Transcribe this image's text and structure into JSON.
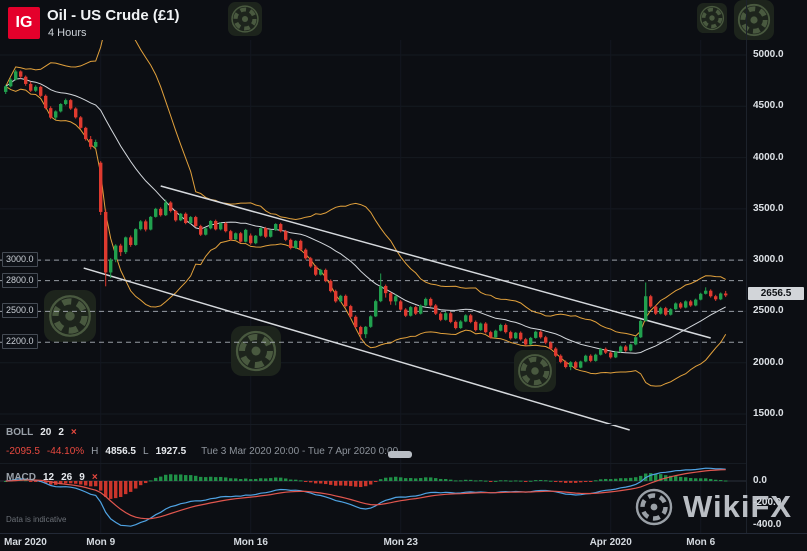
{
  "header": {
    "logo": "IG",
    "title": "Oil - US Crude (£1)",
    "timeframe": "4 Hours"
  },
  "watermark": {
    "brand": "WikiFX"
  },
  "price_axis": {
    "ticks": [
      "5000.0",
      "4500.0",
      "4000.0",
      "3500.0",
      "3000.0",
      "2500.0",
      "2000.0",
      "1500.0"
    ],
    "current_price": "2656.5"
  },
  "levels": [
    "3000.0",
    "2800.0",
    "2500.0",
    "2200.0"
  ],
  "time_axis": [
    "Mar 2020",
    "Mon 9",
    "Mon 16",
    "Mon 23",
    "Apr 2020",
    "Mon 6"
  ],
  "indicators": {
    "boll": {
      "name": "BOLL",
      "params": [
        "20",
        "2"
      ],
      "close_label": "×",
      "stats": {
        "change": "-2095.5",
        "change_pct": "-44.10%",
        "high_label": "H",
        "high": "4856.5",
        "low_label": "L",
        "low": "1927.5",
        "range": "Tue 3 Mar 2020 20:00 - Tue 7 Apr 2020 0:00"
      }
    },
    "macd": {
      "name": "MACD",
      "params": [
        "12",
        "26",
        "9"
      ],
      "close_label": "×",
      "axis_ticks": [
        "0.0",
        "-200.0",
        "-400.0"
      ]
    }
  },
  "footer": {
    "note": "Data is indicative"
  },
  "chart_data": {
    "type": "candlestick",
    "title": "Oil - US Crude (£1)",
    "interval": "4 Hours",
    "visible_range": "Tue 3 Mar 2020 20:00 - Tue 7 Apr 2020 0:00",
    "period_high": 4856.5,
    "period_low": 1927.5,
    "change": -2095.5,
    "change_pct": -44.1,
    "last": 2656.5,
    "y_axis": {
      "min": 1500,
      "max": 5000,
      "step": 500
    },
    "macd_axis": {
      "min": -400,
      "max": 0,
      "step": 200
    },
    "levels": [
      3000,
      2800,
      2500,
      2200
    ],
    "indicators": {
      "bollinger": {
        "period": 20,
        "stddev": 2
      },
      "macd": {
        "fast": 12,
        "slow": 26,
        "signal": 9
      }
    },
    "overlays": {
      "trendlines": [
        {
          "i1": 31,
          "p1": 3723,
          "i2": 141,
          "p2": 2241
        },
        {
          "i1": 15.6,
          "p1": 2923,
          "i2": 124.8,
          "p2": 1344
        }
      ]
    },
    "candles": [
      [
        4640,
        4710,
        4620,
        4695
      ],
      [
        4695,
        4775,
        4685,
        4760
      ],
      [
        4760,
        4856.5,
        4750,
        4840
      ],
      [
        4840,
        4850,
        4770,
        4788
      ],
      [
        4788,
        4800,
        4700,
        4718
      ],
      [
        4718,
        4740,
        4640,
        4652
      ],
      [
        4652,
        4705,
        4640,
        4690
      ],
      [
        4690,
        4700,
        4590,
        4602
      ],
      [
        4602,
        4615,
        4470,
        4482
      ],
      [
        4482,
        4500,
        4375,
        4390
      ],
      [
        4390,
        4460,
        4370,
        4450
      ],
      [
        4450,
        4530,
        4440,
        4522
      ],
      [
        4522,
        4575,
        4510,
        4560
      ],
      [
        4560,
        4570,
        4465,
        4478
      ],
      [
        4478,
        4490,
        4380,
        4392
      ],
      [
        4392,
        4405,
        4280,
        4290
      ],
      [
        4290,
        4300,
        4165,
        4180
      ],
      [
        4180,
        4210,
        4080,
        4105
      ],
      [
        4105,
        4175,
        4090,
        4152
      ],
      [
        3950,
        3965,
        3440,
        3470
      ],
      [
        3470,
        3495,
        2745,
        2880
      ],
      [
        2880,
        3020,
        2825,
        3005
      ],
      [
        3005,
        3155,
        2980,
        3142
      ],
      [
        3142,
        3160,
        3040,
        3078
      ],
      [
        3078,
        3230,
        3060,
        3222
      ],
      [
        3222,
        3240,
        3130,
        3148
      ],
      [
        3148,
        3310,
        3140,
        3302
      ],
      [
        3302,
        3390,
        3290,
        3378
      ],
      [
        3378,
        3395,
        3280,
        3298
      ],
      [
        3298,
        3430,
        3290,
        3422
      ],
      [
        3422,
        3510,
        3415,
        3500
      ],
      [
        3500,
        3515,
        3425,
        3438
      ],
      [
        3438,
        3590,
        3430,
        3562
      ],
      [
        3562,
        3575,
        3465,
        3480
      ],
      [
        3480,
        3490,
        3375,
        3388
      ],
      [
        3388,
        3460,
        3380,
        3452
      ],
      [
        3452,
        3465,
        3350,
        3362
      ],
      [
        3362,
        3430,
        3355,
        3420
      ],
      [
        3420,
        3432,
        3320,
        3332
      ],
      [
        3332,
        3345,
        3235,
        3248
      ],
      [
        3248,
        3320,
        3240,
        3310
      ],
      [
        3310,
        3390,
        3300,
        3382
      ],
      [
        3382,
        3395,
        3290,
        3300
      ],
      [
        3300,
        3368,
        3290,
        3360
      ],
      [
        3360,
        3372,
        3270,
        3282
      ],
      [
        3282,
        3295,
        3190,
        3202
      ],
      [
        3202,
        3270,
        3195,
        3262
      ],
      [
        3262,
        3275,
        3170,
        3180
      ],
      [
        3180,
        3305,
        3172,
        3295
      ],
      [
        3240,
        3260,
        3150,
        3165
      ],
      [
        3165,
        3245,
        3155,
        3238
      ],
      [
        3238,
        3320,
        3230,
        3312
      ],
      [
        3312,
        3325,
        3215,
        3228
      ],
      [
        3228,
        3300,
        3220,
        3292
      ],
      [
        3292,
        3360,
        3285,
        3352
      ],
      [
        3352,
        3365,
        3270,
        3282
      ],
      [
        3282,
        3295,
        3185,
        3198
      ],
      [
        3198,
        3210,
        3105,
        3118
      ],
      [
        3118,
        3195,
        3110,
        3188
      ],
      [
        3188,
        3200,
        3090,
        3102
      ],
      [
        3102,
        3115,
        3005,
        3018
      ],
      [
        3018,
        3032,
        2925,
        2938
      ],
      [
        2938,
        2952,
        2845,
        2858
      ],
      [
        2858,
        2915,
        2850,
        2905
      ],
      [
        2905,
        2918,
        2785,
        2798
      ],
      [
        2798,
        2812,
        2685,
        2698
      ],
      [
        2698,
        2712,
        2585,
        2598
      ],
      [
        2598,
        2662,
        2590,
        2652
      ],
      [
        2652,
        2665,
        2540,
        2552
      ],
      [
        2552,
        2565,
        2435,
        2448
      ],
      [
        2448,
        2462,
        2335,
        2348
      ],
      [
        2348,
        2360,
        2225,
        2278
      ],
      [
        2278,
        2358,
        2240,
        2350
      ],
      [
        2350,
        2462,
        2340,
        2452
      ],
      [
        2452,
        2615,
        2445,
        2600
      ],
      [
        2600,
        2870,
        2590,
        2748
      ],
      [
        2748,
        2762,
        2635,
        2678
      ],
      [
        2678,
        2690,
        2565,
        2598
      ],
      [
        2598,
        2665,
        2560,
        2648
      ],
      [
        2598,
        2612,
        2505,
        2518
      ],
      [
        2518,
        2532,
        2445,
        2458
      ],
      [
        2458,
        2552,
        2450,
        2542
      ],
      [
        2542,
        2556,
        2465,
        2478
      ],
      [
        2478,
        2568,
        2470,
        2558
      ],
      [
        2558,
        2635,
        2550,
        2622
      ],
      [
        2622,
        2636,
        2545,
        2558
      ],
      [
        2558,
        2572,
        2465,
        2478
      ],
      [
        2478,
        2492,
        2405,
        2418
      ],
      [
        2418,
        2495,
        2410,
        2482
      ],
      [
        2482,
        2496,
        2385,
        2398
      ],
      [
        2398,
        2412,
        2325,
        2338
      ],
      [
        2338,
        2415,
        2330,
        2402
      ],
      [
        2402,
        2472,
        2395,
        2462
      ],
      [
        2462,
        2476,
        2385,
        2398
      ],
      [
        2398,
        2412,
        2305,
        2318
      ],
      [
        2318,
        2392,
        2310,
        2382
      ],
      [
        2382,
        2396,
        2285,
        2298
      ],
      [
        2298,
        2312,
        2235,
        2248
      ],
      [
        2248,
        2322,
        2240,
        2312
      ],
      [
        2312,
        2380,
        2305,
        2368
      ],
      [
        2368,
        2382,
        2285,
        2298
      ],
      [
        2298,
        2312,
        2225,
        2238
      ],
      [
        2238,
        2300,
        2230,
        2292
      ],
      [
        2292,
        2305,
        2215,
        2228
      ],
      [
        2228,
        2242,
        2165,
        2178
      ],
      [
        2178,
        2252,
        2170,
        2242
      ],
      [
        2242,
        2312,
        2235,
        2302
      ],
      [
        2302,
        2315,
        2235,
        2248
      ],
      [
        2248,
        2262,
        2180,
        2195
      ],
      [
        2195,
        2208,
        2125,
        2138
      ],
      [
        2138,
        2152,
        2055,
        2068
      ],
      [
        2068,
        2082,
        1995,
        2008
      ],
      [
        2008,
        2022,
        1945,
        1958
      ],
      [
        1958,
        2015,
        1927.5,
        2005
      ],
      [
        2005,
        2018,
        1940,
        1952
      ],
      [
        1952,
        2020,
        1945,
        2012
      ],
      [
        2012,
        2078,
        2005,
        2068
      ],
      [
        2068,
        2082,
        2005,
        2018
      ],
      [
        2018,
        2088,
        2010,
        2078
      ],
      [
        2078,
        2145,
        2070,
        2135
      ],
      [
        2135,
        2148,
        2085,
        2098
      ],
      [
        2098,
        2112,
        2040,
        2052
      ],
      [
        2052,
        2115,
        2045,
        2105
      ],
      [
        2105,
        2168,
        2098,
        2158
      ],
      [
        2158,
        2172,
        2105,
        2118
      ],
      [
        2118,
        2185,
        2110,
        2178
      ],
      [
        2178,
        2255,
        2170,
        2248
      ],
      [
        2248,
        2420,
        2240,
        2408
      ],
      [
        2408,
        2782,
        2400,
        2648
      ],
      [
        2648,
        2662,
        2535,
        2548
      ],
      [
        2548,
        2562,
        2465,
        2478
      ],
      [
        2478,
        2545,
        2470,
        2532
      ],
      [
        2532,
        2545,
        2455,
        2468
      ],
      [
        2468,
        2532,
        2460,
        2522
      ],
      [
        2522,
        2588,
        2515,
        2578
      ],
      [
        2578,
        2592,
        2525,
        2538
      ],
      [
        2538,
        2608,
        2530,
        2598
      ],
      [
        2598,
        2612,
        2545,
        2558
      ],
      [
        2558,
        2625,
        2550,
        2615
      ],
      [
        2615,
        2682,
        2608,
        2672
      ],
      [
        2672,
        2735,
        2665,
        2702
      ],
      [
        2702,
        2715,
        2635,
        2648
      ],
      [
        2648,
        2662,
        2602,
        2618
      ],
      [
        2618,
        2685,
        2610,
        2675
      ],
      [
        2675,
        2700,
        2640,
        2656.5
      ]
    ]
  }
}
